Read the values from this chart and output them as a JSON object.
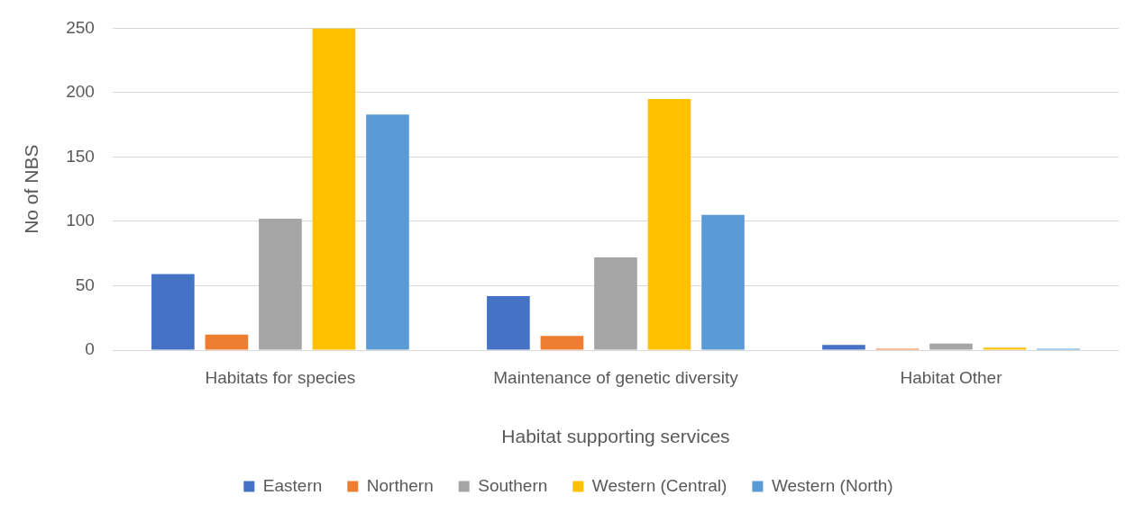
{
  "chart_data": {
    "type": "bar",
    "xlabel": "Habitat supporting services",
    "ylabel": "No of NBS",
    "categories": [
      "Habitats for species",
      "Maintenance of genetic diversity",
      "Habitat Other"
    ],
    "series": [
      {
        "name": "Eastern",
        "color": "#4472c4",
        "values": [
          59,
          42,
          4
        ]
      },
      {
        "name": "Northern",
        "color": "#ed7d31",
        "values": [
          12,
          11,
          1
        ]
      },
      {
        "name": "Southern",
        "color": "#a5a5a5",
        "values": [
          102,
          72,
          5
        ]
      },
      {
        "name": "Western (Central)",
        "color": "#ffc000",
        "values": [
          250,
          195,
          2
        ]
      },
      {
        "name": "Western (North)",
        "color": "#5b9bd5",
        "values": [
          183,
          105,
          1
        ]
      }
    ],
    "ylim": [
      0,
      250
    ],
    "yticks": [
      0,
      50,
      100,
      150,
      200,
      250
    ],
    "grid": "y",
    "legend": "bottom"
  }
}
